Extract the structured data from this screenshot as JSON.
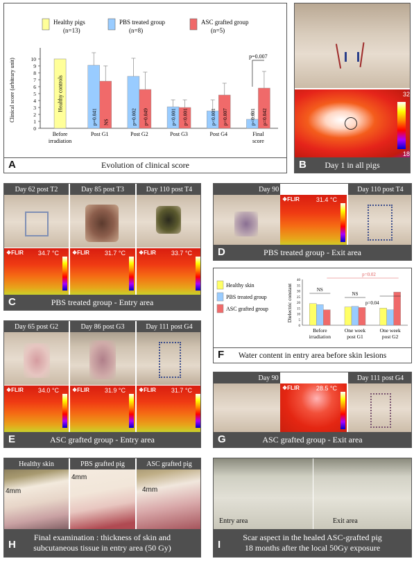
{
  "panelA": {
    "letter": "A",
    "caption": "Evolution of clinical score",
    "ylabel": "Clinical score (arbitrary unit)",
    "legend": [
      {
        "label": "Healthy pigs",
        "n": "(n=13)",
        "color": "#ffff99"
      },
      {
        "label": "PBS treated group",
        "n": "(n=8)",
        "color": "#99ccff"
      },
      {
        "label": "ASC grafted group",
        "n": "(n=5)",
        "color": "#f06a6a"
      }
    ],
    "healthy_label": "Healthy controls",
    "final_p": "p=0.007",
    "yticks": [
      "0",
      "1",
      "2",
      "3",
      "4",
      "5",
      "6",
      "7",
      "8",
      "9",
      "10"
    ]
  },
  "chart_data": [
    {
      "type": "bar",
      "panel": "A",
      "categories": [
        "Before irradiation",
        "Post G1",
        "Post G2",
        "Post G3",
        "Post G4",
        "Final score"
      ],
      "series": [
        {
          "name": "Healthy pigs",
          "values": [
            10,
            null,
            null,
            null,
            null,
            null
          ]
        },
        {
          "name": "PBS treated group",
          "values": [
            null,
            9.1,
            7.5,
            3.1,
            2.5,
            1.3
          ],
          "errors": [
            null,
            1.8,
            2.6,
            1.0,
            1.6,
            0.8
          ]
        },
        {
          "name": "ASC grafted group",
          "values": [
            null,
            6.8,
            5.6,
            3.0,
            4.8,
            5.8
          ],
          "errors": [
            null,
            2.2,
            2.5,
            1.1,
            1.7,
            2.4
          ]
        }
      ],
      "pvalues_pbs": [
        null,
        "p=0.041",
        "p=0.002",
        "p<0.001",
        "p<0.001",
        "p<0.001"
      ],
      "pvalues_asc": [
        null,
        "NS",
        "p=0.049",
        "p<0.001",
        "p=0.007",
        "p=0.042"
      ],
      "ylabel": "Clinical score (arbitrary unit)",
      "ylim": [
        0,
        11
      ]
    },
    {
      "type": "bar",
      "panel": "F",
      "categories": [
        "Before irradiation",
        "One week post G1",
        "One week post G2"
      ],
      "series": [
        {
          "name": "Healthy skin",
          "values": [
            19,
            16,
            15
          ]
        },
        {
          "name": "PBS treated group",
          "values": [
            18,
            16.5,
            13.5
          ]
        },
        {
          "name": "ASC grafted group",
          "values": [
            13.5,
            15.5,
            29
          ]
        }
      ],
      "ylabel": "Dielectric constant",
      "ylim": [
        0,
        40
      ],
      "yticks": [
        0,
        5,
        10,
        15,
        20,
        25,
        30,
        35,
        40
      ],
      "annotations": [
        "NS",
        "NS",
        "p=0.04",
        "p=0.02"
      ]
    }
  ],
  "panelB": {
    "letter": "B",
    "caption": "Day 1 in all pigs",
    "scale_top": "32",
    "scale_bottom": "18"
  },
  "panelC": {
    "letter": "C",
    "caption": "PBS treated group  -  Entry area",
    "photos": [
      "Day 62 post T2",
      "Day 85 post T3",
      "Day 110 post T4"
    ],
    "temps": [
      "34.7 °C",
      "31.7 °C",
      "33.7 °C"
    ]
  },
  "panelD": {
    "letter": "D",
    "caption": "PBS treated group  -  Exit area",
    "photos": [
      "Day 90 post T3",
      "Day 110 post T4"
    ],
    "temp": "31.4 °C"
  },
  "panelE": {
    "letter": "E",
    "caption": "ASC grafted group  -  Entry area",
    "photos": [
      "Day 65 post G2",
      "Day 86 post G3",
      "Day 111 post G4"
    ],
    "temps": [
      "34.0 °C",
      "31.9 °C",
      "31.7 °C"
    ]
  },
  "panelF": {
    "letter": "F",
    "caption": "Water content in entry area before skin lesions",
    "legend": [
      "Healthy skin",
      "PBS treated group",
      "ASC grafted group"
    ],
    "ylabel": "Dielectric constant"
  },
  "panelG": {
    "letter": "G",
    "caption": "ASC grafted group  -  Exit area",
    "photos": [
      "Day 90 post G3",
      "Day 111 post G4"
    ],
    "temp": "28.5 °C"
  },
  "panelH": {
    "letter": "H",
    "caption_line1": "Final examination : thickness of skin and",
    "caption_line2": "subcutaneous tissue in entry area (50 Gy)",
    "photos": [
      "Healthy skin",
      "PBS grafted pig",
      "ASC grafted pig"
    ],
    "measure": "4mm"
  },
  "panelI": {
    "letter": "I",
    "caption_line1": "Scar aspect in the healed ASC-grafted pig",
    "caption_line2": "18 months after the local 50Gy exposure",
    "labels": [
      "Entry area",
      "Exit area"
    ]
  },
  "flir": "❖FLIR"
}
